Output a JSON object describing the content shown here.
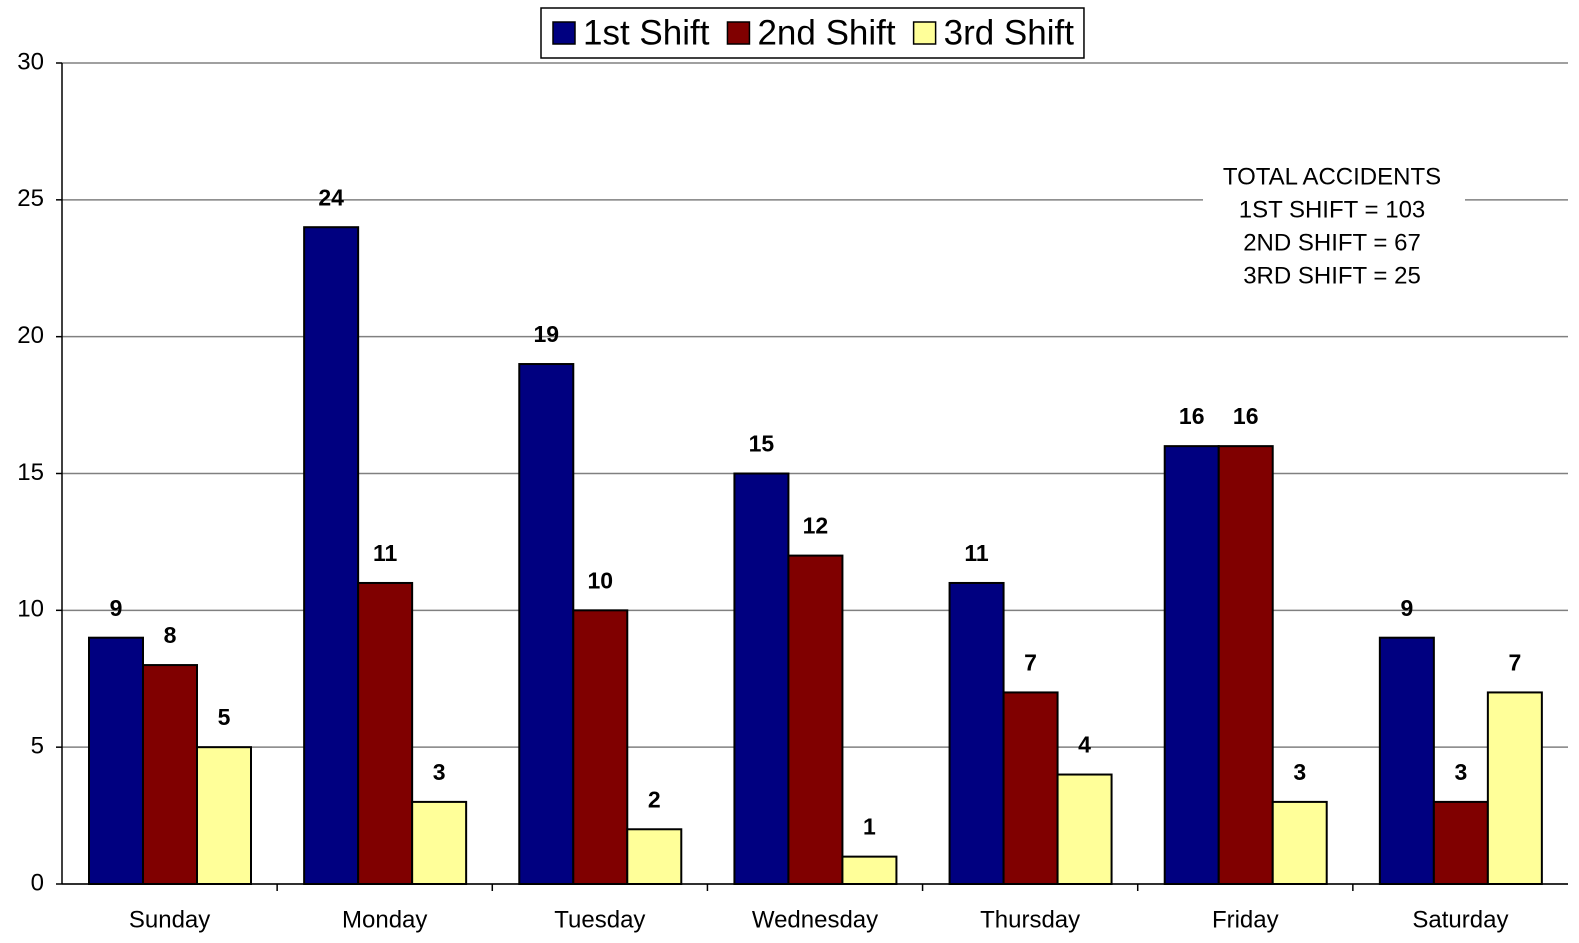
{
  "chart_data": {
    "type": "bar",
    "categories": [
      "Sunday",
      "Monday",
      "Tuesday",
      "Wednesday",
      "Thursday",
      "Friday",
      "Saturday"
    ],
    "series": [
      {
        "name": "1st Shift",
        "color": "#000080",
        "values": [
          9,
          24,
          19,
          15,
          11,
          16,
          9
        ]
      },
      {
        "name": "2nd Shift",
        "color": "#800000",
        "values": [
          8,
          11,
          10,
          12,
          7,
          16,
          3
        ]
      },
      {
        "name": "3rd Shift",
        "color": "#ffff99",
        "values": [
          5,
          3,
          2,
          1,
          4,
          3,
          7
        ]
      }
    ],
    "ylim": [
      0,
      30
    ],
    "yticks": [
      0,
      5,
      10,
      15,
      20,
      25,
      30
    ],
    "grid": true,
    "legend": "top",
    "annotation": [
      "TOTAL ACCIDENTS",
      "1ST SHIFT = 103",
      "2ND SHIFT = 67",
      "3RD SHIFT = 25"
    ]
  }
}
